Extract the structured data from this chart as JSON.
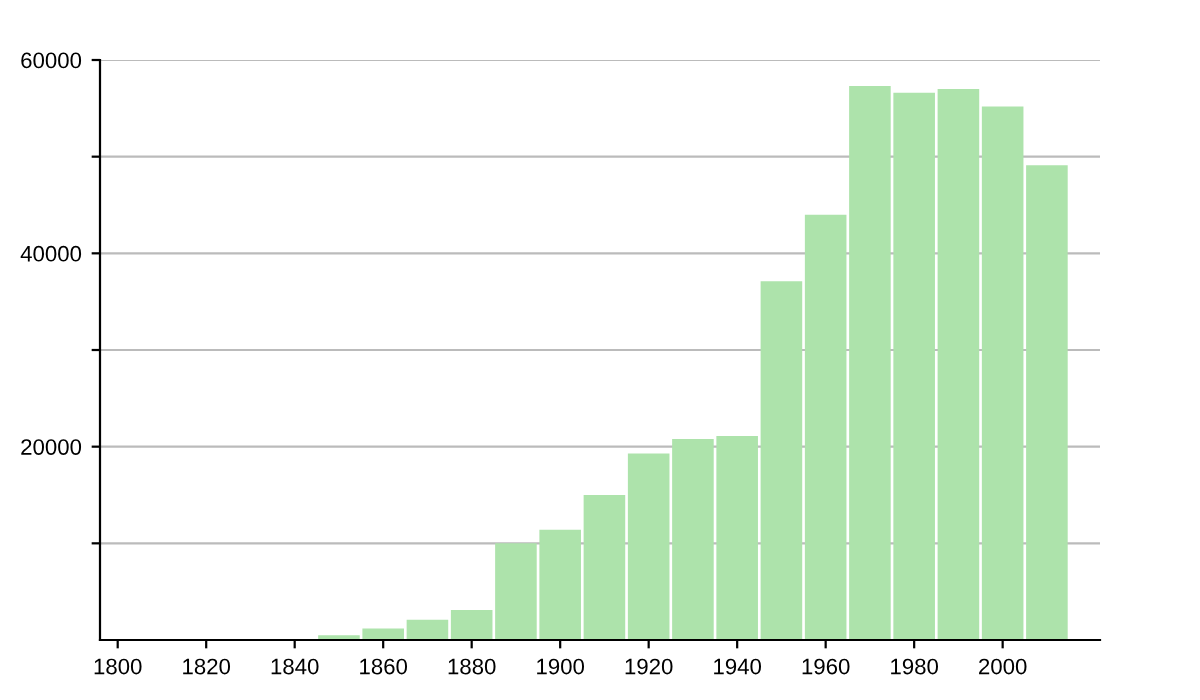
{
  "chart_data": {
    "type": "bar",
    "x": [
      1850,
      1860,
      1870,
      1880,
      1890,
      1900,
      1910,
      1920,
      1930,
      1940,
      1950,
      1960,
      1970,
      1980,
      1990,
      2000,
      2010
    ],
    "values": [
      500,
      1200,
      2100,
      3100,
      10000,
      11400,
      15000,
      19300,
      20800,
      21100,
      37100,
      44000,
      57300,
      56600,
      57000,
      55200,
      49100
    ],
    "color": "#ade3ab",
    "xlim": [
      1796,
      2022
    ],
    "xticks": [
      1800,
      1820,
      1840,
      1860,
      1880,
      1900,
      1920,
      1940,
      1960,
      1980,
      2000
    ],
    "ylim": [
      0,
      60000
    ],
    "yticks": [
      {
        "value": 10000,
        "label": null
      },
      20000,
      {
        "value": 30000,
        "label": null
      },
      40000,
      {
        "value": 50000,
        "label": null
      },
      60000
    ],
    "grid": "y",
    "legend": false
  }
}
